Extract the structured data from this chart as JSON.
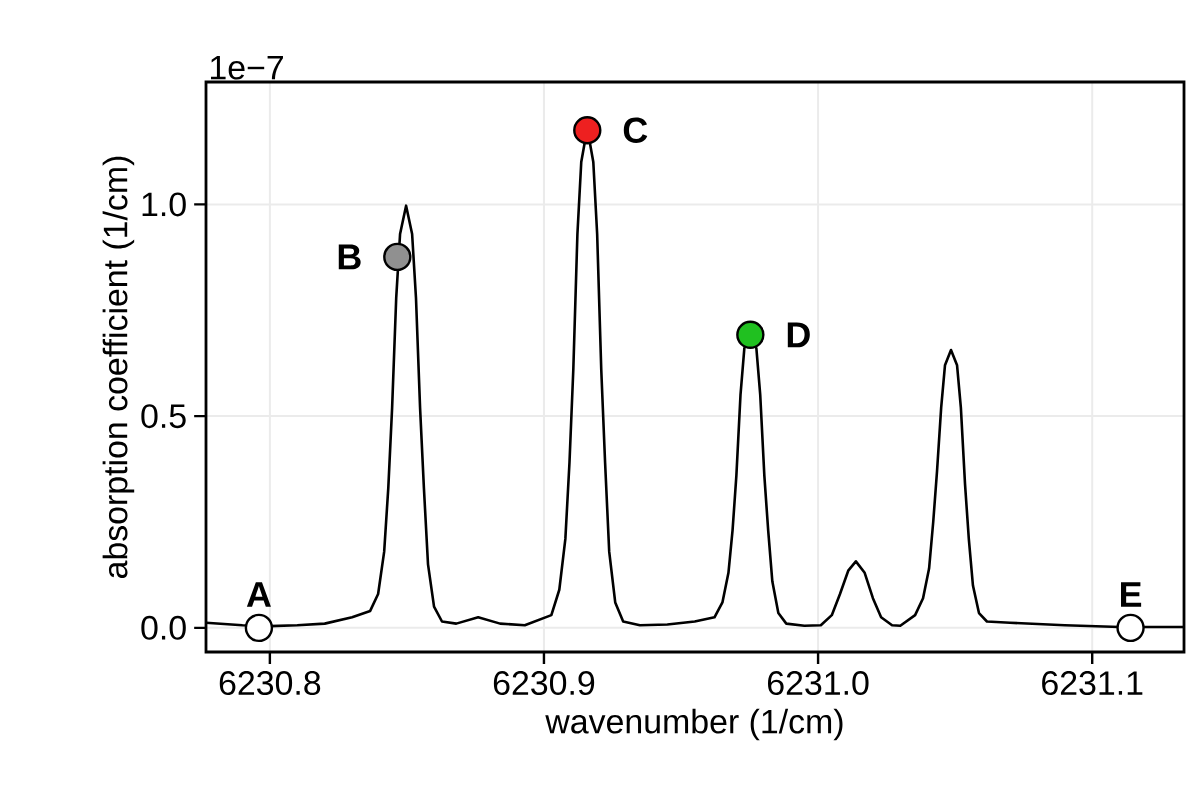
{
  "chart_data": {
    "type": "line",
    "xlabel": "wavenumber (1/cm)",
    "ylabel": "absorption coefficient (1/cm)",
    "xlim": [
      6230.7767,
      6231.1335
    ],
    "ylim": [
      -0.057,
      1.289
    ],
    "xticks": [
      6230.8,
      6230.9,
      {
        "value": 6231.0,
        "label": "6231.0"
      },
      6231.1
    ],
    "yticks": [
      {
        "value": 0,
        "label": "0.0"
      },
      {
        "value": 0.5,
        "label": "0.5"
      },
      {
        "value": 1,
        "label": "1.0"
      }
    ],
    "grid": true,
    "series": [
      {
        "color": "#000000",
        "marker": "none",
        "line_style": "solid",
        "x": [
          6230.7767,
          6230.79,
          6230.8,
          6230.81,
          6230.82,
          6230.83,
          6230.8366,
          6230.8395,
          6230.8417,
          6230.8432,
          6230.8446,
          6230.8461,
          6230.8475,
          6230.8497,
          6230.8519,
          6230.8533,
          6230.8548,
          6230.8562,
          6230.8577,
          6230.8599,
          6230.8628,
          6230.868,
          6230.876,
          6230.884,
          6230.893,
          6230.9027,
          6230.9056,
          6230.9078,
          6230.9093,
          6230.9107,
          6230.9122,
          6230.9136,
          6230.9158,
          6230.918,
          6230.9194,
          6230.9209,
          6230.9223,
          6230.9238,
          6230.926,
          6230.9289,
          6230.935,
          6230.945,
          6230.955,
          6230.9622,
          6230.9651,
          6230.9673,
          6230.9688,
          6230.9702,
          6230.9717,
          6230.9731,
          6230.9753,
          6230.9775,
          6230.9789,
          6230.9804,
          6230.9818,
          6230.9833,
          6230.9855,
          6230.9884,
          6230.995,
          6231.001,
          6231.005,
          6231.008,
          6231.011,
          6231.0138,
          6231.017,
          6231.02,
          6231.023,
          6231.027,
          6231.03,
          6231.0354,
          6231.0383,
          6231.0405,
          6231.042,
          6231.0434,
          6231.0449,
          6231.0463,
          6231.0485,
          6231.0507,
          6231.0521,
          6231.0536,
          6231.055,
          6231.0565,
          6231.0587,
          6231.0616,
          6231.07,
          6231.09,
          6231.11,
          6231.1335
        ],
        "values": [
          0.012,
          0.006,
          0.004,
          0.006,
          0.01,
          0.025,
          0.04,
          0.08,
          0.18,
          0.33,
          0.52,
          0.78,
          0.93,
          0.997,
          0.93,
          0.78,
          0.52,
          0.33,
          0.15,
          0.05,
          0.015,
          0.01,
          0.025,
          0.01,
          0.006,
          0.03,
          0.09,
          0.21,
          0.39,
          0.61,
          0.93,
          1.1,
          1.18,
          1.1,
          0.93,
          0.61,
          0.39,
          0.18,
          0.06,
          0.015,
          0.006,
          0.008,
          0.015,
          0.025,
          0.06,
          0.13,
          0.23,
          0.36,
          0.55,
          0.66,
          0.7,
          0.66,
          0.55,
          0.36,
          0.23,
          0.11,
          0.035,
          0.01,
          0.005,
          0.006,
          0.03,
          0.08,
          0.135,
          0.157,
          0.13,
          0.07,
          0.025,
          0.006,
          0.005,
          0.03,
          0.07,
          0.14,
          0.25,
          0.37,
          0.52,
          0.62,
          0.656,
          0.62,
          0.52,
          0.34,
          0.21,
          0.1,
          0.035,
          0.015,
          0.012,
          0.006,
          0.002,
          0.002
        ]
      },
      {
        "type": "scatter",
        "marker": "circle",
        "x": [
          6230.796,
          6230.8465,
          6230.9158,
          6230.9753,
          6231.114
        ],
        "values": [
          0,
          0.876,
          1.175,
          0.692,
          0
        ],
        "colors": [
          "#ffffff",
          "#909090",
          "#ee2020",
          "#20c020",
          "#ffffff"
        ]
      }
    ],
    "annotations": [
      "1e−7",
      {
        "text": "A",
        "x": 6230.796,
        "y": 0
      },
      {
        "text": "B",
        "x": 6230.8465,
        "y": 0.876
      },
      {
        "text": "C",
        "x": 6230.9158,
        "y": 1.175
      },
      {
        "text": "D",
        "x": 6230.9753,
        "y": 0.692
      },
      {
        "text": "E",
        "x": 6231.114,
        "y": 0
      }
    ]
  }
}
